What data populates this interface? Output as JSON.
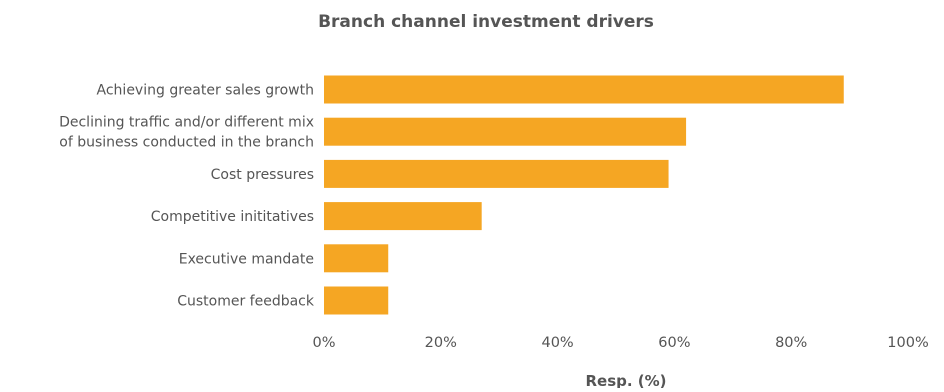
{
  "chart_data": {
    "type": "bar",
    "orientation": "horizontal",
    "title": "Branch channel investment drivers",
    "xlabel": "Resp. (%)",
    "ylabel": "",
    "xlim": [
      0,
      100
    ],
    "x_ticks": [
      0,
      20,
      40,
      60,
      80,
      100
    ],
    "x_tick_labels": [
      "0%",
      "20%",
      "40%",
      "60%",
      "80%",
      "100%"
    ],
    "grid": false,
    "legend": "none",
    "bar_color": "#F5A623",
    "categories": [
      [
        "Achieving greater sales growth"
      ],
      [
        "Declining traffic and/or different mix",
        "of business conducted in the branch"
      ],
      [
        "Cost pressures"
      ],
      [
        "Competitive inititatives"
      ],
      [
        "Executive mandate"
      ],
      [
        "Customer feedback"
      ]
    ],
    "values": [
      89,
      62,
      59,
      27,
      11,
      11
    ]
  }
}
